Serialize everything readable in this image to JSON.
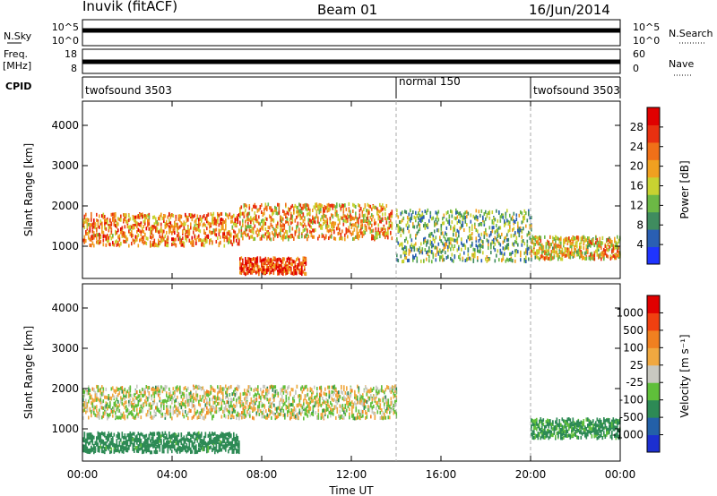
{
  "header": {
    "station": "Inuvik (fitACF)",
    "beam": "Beam 01",
    "date": "16/Jun/2014"
  },
  "strips": {
    "nsky_label": "N.Sky",
    "nsky_ticks": [
      "10^5",
      "10^0"
    ],
    "nsearch_label": "N.Search",
    "nsearch_ticks": [
      "10^5",
      "10^0"
    ],
    "freq_label": "Freq.",
    "freq_unit": "[MHz]",
    "freq_ticks": [
      "18",
      "8"
    ],
    "nave_label": "Nave",
    "nave_ticks": [
      "60",
      "0"
    ],
    "cpid_label": "CPID",
    "cpid_segments": [
      {
        "label": "twofsound 3503",
        "start_hour": 0,
        "end_hour": 14
      },
      {
        "label": "normal 150",
        "start_hour": 14,
        "end_hour": 20
      },
      {
        "label": "twofsound 3503",
        "start_hour": 20,
        "end_hour": 24
      }
    ]
  },
  "colors": {
    "power": [
      "#1f34ff",
      "#2a5fb3",
      "#3f8c5f",
      "#6cb845",
      "#c8d231",
      "#f0a020",
      "#f07018",
      "#e83010",
      "#e00000"
    ],
    "velocity": [
      "#1c2fd0",
      "#2360a8",
      "#2d8a55",
      "#5fbf3a",
      "#c8c8c0",
      "#f0a840",
      "#f08020",
      "#f04010",
      "#e00000"
    ]
  },
  "chart_data": [
    {
      "type": "heatmap",
      "name": "power",
      "ylabel": "Slant Range [km]",
      "xlabel": "Time UT",
      "xticks": [
        "00:00",
        "04:00",
        "08:00",
        "12:00",
        "16:00",
        "20:00",
        "00:00"
      ],
      "yticks": [
        "1000",
        "2000",
        "3000",
        "4000"
      ],
      "ylim": [
        200,
        4600
      ],
      "xlim_hours": [
        0,
        24
      ],
      "colorbar": {
        "label": "Power [dB]",
        "ticks": [
          "28",
          "24",
          "20",
          "16",
          "12",
          "8",
          "4"
        ],
        "range": [
          0,
          32
        ]
      },
      "features": [
        {
          "desc": "main band",
          "t0": 0,
          "t1": 7,
          "r_center": 1450,
          "r_width": 500,
          "value": 22
        },
        {
          "desc": "main band",
          "t0": 7,
          "t1": 13.8,
          "r_center": 1650,
          "r_width": 550,
          "value": 20
        },
        {
          "desc": "low range",
          "t0": 7,
          "t1": 10,
          "r_center": 550,
          "r_width": 250,
          "value": 26
        },
        {
          "desc": "post-switch",
          "t0": 14,
          "t1": 20,
          "r_center": 1300,
          "r_width": 800,
          "value": 12
        },
        {
          "desc": "evening band",
          "t0": 20,
          "t1": 24,
          "r_center": 1000,
          "r_width": 350,
          "value": 18
        }
      ]
    },
    {
      "type": "heatmap",
      "name": "velocity",
      "ylabel": "Slant Range [km]",
      "xlabel": "Time UT",
      "xticks": [
        "00:00",
        "04:00",
        "08:00",
        "12:00",
        "16:00",
        "20:00",
        "00:00"
      ],
      "yticks": [
        "1000",
        "2000",
        "3000",
        "4000"
      ],
      "ylim": [
        200,
        4600
      ],
      "xlim_hours": [
        0,
        24
      ],
      "colorbar": {
        "label": "Velocity [m s⁻¹]",
        "ticks": [
          "1000",
          "500",
          "100",
          "25",
          "-25",
          "-100",
          "-500",
          "-1000"
        ]
      },
      "features": [
        {
          "desc": "ground scatter band",
          "t0": 0,
          "t1": 14,
          "r_center": 1700,
          "r_width": 500,
          "value": 0
        },
        {
          "desc": "low range flow",
          "t0": 0,
          "t1": 7,
          "r_center": 700,
          "r_width": 300,
          "value": -200
        },
        {
          "desc": "evening flow",
          "t0": 20,
          "t1": 24,
          "r_center": 1050,
          "r_width": 300,
          "value": -150
        }
      ]
    }
  ]
}
